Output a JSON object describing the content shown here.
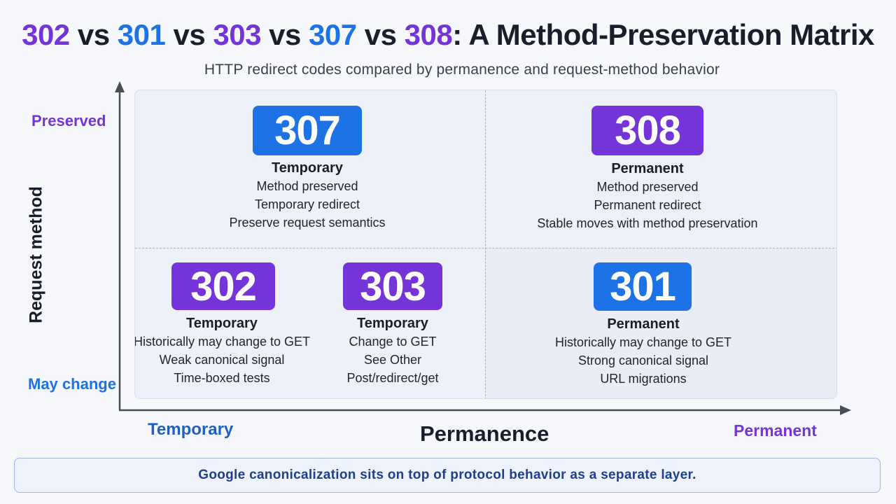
{
  "title": {
    "parts": [
      {
        "text": "302",
        "color": "#7434d8"
      },
      {
        "text": " vs ",
        "color": "#1b1d2a"
      },
      {
        "text": "301",
        "color": "#1d73e6"
      },
      {
        "text": " vs ",
        "color": "#1b1d2a"
      },
      {
        "text": "303",
        "color": "#7434d8"
      },
      {
        "text": " vs ",
        "color": "#1b1d2a"
      },
      {
        "text": "307",
        "color": "#1d73e6"
      },
      {
        "text": " vs ",
        "color": "#1b1d2a"
      },
      {
        "text": "308",
        "color": "#7434d8"
      },
      {
        "text": ": A Method-Preservation Matrix",
        "color": "#1b1d2a"
      }
    ]
  },
  "subtitle": "HTTP redirect codes compared by permanence and request-method behavior",
  "axes": {
    "y_title": "Request method",
    "y_top": "Preserved",
    "y_bottom": "May change",
    "x_title": "Permanence",
    "x_left": "Temporary",
    "x_right": "Permanent"
  },
  "colors": {
    "blue": "#1d73e6",
    "purple": "#7434d8"
  },
  "cards": {
    "c307": {
      "code": "307",
      "kind": "Temporary",
      "lines": [
        "Method preserved",
        "Temporary redirect",
        "Preserve request semantics"
      ]
    },
    "c308": {
      "code": "308",
      "kind": "Permanent",
      "lines": [
        "Method preserved",
        "Permanent redirect",
        "Stable moves with method preservation"
      ]
    },
    "c302": {
      "code": "302",
      "kind": "Temporary",
      "lines": [
        "Historically may change to GET",
        "Weak canonical signal",
        "Time-boxed tests"
      ]
    },
    "c303": {
      "code": "303",
      "kind": "Temporary",
      "lines": [
        "Change to GET",
        "See Other",
        "Post/redirect/get"
      ]
    },
    "c301": {
      "code": "301",
      "kind": "Permanent",
      "lines": [
        "Historically may change to GET",
        "Strong canonical signal",
        "URL migrations"
      ]
    }
  },
  "footer": "Google canonicalization sits on top of protocol behavior as a separate layer."
}
